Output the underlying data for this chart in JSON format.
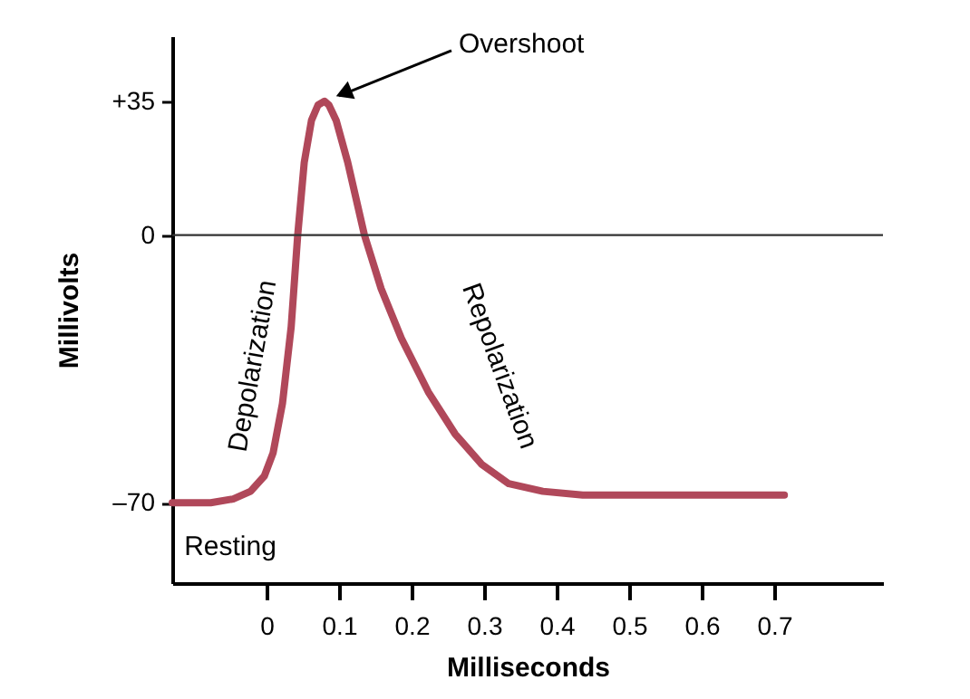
{
  "chart_data": {
    "type": "line",
    "xlabel": "Milliseconds",
    "ylabel": "Millivolts",
    "xlim": [
      -0.13,
      0.85
    ],
    "xticks": [
      0,
      0.1,
      0.2,
      0.3,
      0.4,
      0.5,
      0.6,
      0.7
    ],
    "ylim": [
      -91,
      52
    ],
    "yticks": [
      {
        "value": 35,
        "label": "+35"
      },
      0,
      {
        "value": -70,
        "label": "–70"
      }
    ],
    "series": [
      {
        "color": "#b0485a",
        "x": [
          -0.13,
          -0.077,
          -0.046,
          -0.022,
          -0.003,
          0.009,
          0.022,
          0.034,
          0.043,
          0.052,
          0.062,
          0.071,
          0.08,
          0.086,
          0.096,
          0.112,
          0.135,
          0.158,
          0.186,
          0.223,
          0.26,
          0.297,
          0.334,
          0.381,
          0.436,
          0.714
        ],
        "values": [
          -70,
          -70,
          -69,
          -67,
          -63,
          -57,
          -44,
          -24,
          0,
          19,
          30,
          34,
          35,
          34,
          30,
          19,
          0,
          -14,
          -27,
          -41,
          -52,
          -60,
          -65,
          -67,
          -68,
          -68
        ]
      }
    ],
    "ref_lines": [
      {
        "axis": "y",
        "value": 0,
        "color": "#333333"
      }
    ],
    "annotations": [
      {
        "text": "Overshoot",
        "x": 0.08,
        "y": 35
      },
      "Depolarization",
      "Repolarization",
      {
        "text": "Resting",
        "x": -0.05,
        "y": -70
      }
    ],
    "grid": false,
    "marker": "none",
    "line_style": "solid"
  }
}
